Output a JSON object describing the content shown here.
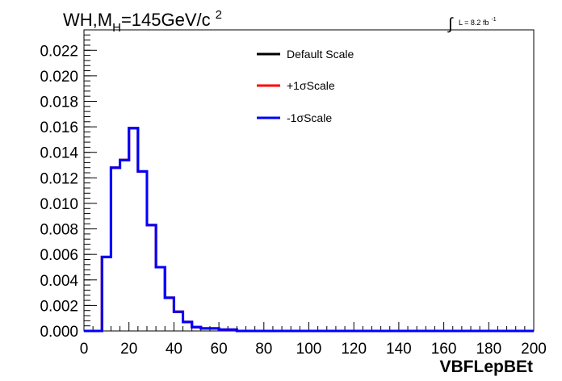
{
  "chart_data": {
    "type": "line",
    "title": {
      "main": "WH,M",
      "sub": "H",
      "value": "=145GeV/c",
      "sup": "2"
    },
    "lumi": {
      "integral": "∫",
      "text": "L = 8.2 fb",
      "sup": "-1"
    },
    "xlabel": "VBFLepBEt",
    "ylabel": "",
    "xlim": [
      0,
      200
    ],
    "ylim": [
      0,
      0.0236
    ],
    "x_ticks": [
      0,
      20,
      40,
      60,
      80,
      100,
      120,
      140,
      160,
      180,
      200
    ],
    "x_tick_labels": [
      "0",
      "20",
      "40",
      "60",
      "80",
      "100",
      "120",
      "140",
      "160",
      "180",
      "200"
    ],
    "y_ticks": [
      0,
      0.002,
      0.004,
      0.006,
      0.008,
      0.01,
      0.012,
      0.014,
      0.016,
      0.018,
      0.02,
      0.022
    ],
    "y_tick_labels": [
      "0.000",
      "0.002",
      "0.004",
      "0.006",
      "0.008",
      "0.010",
      "0.012",
      "0.014",
      "0.016",
      "0.018",
      "0.020",
      "0.022"
    ],
    "grid": false,
    "legend_position": "top-center",
    "bin_edges": [
      0,
      4,
      8,
      12,
      16,
      20,
      24,
      28,
      32,
      36,
      40,
      44,
      48,
      52,
      56,
      60,
      64,
      68,
      200
    ],
    "series": [
      {
        "name": "Default Scale",
        "color": "#000000",
        "values": [
          0,
          0,
          0.0058,
          0.0128,
          0.0134,
          0.0159,
          0.0125,
          0.0083,
          0.005,
          0.0026,
          0.0015,
          0.0007,
          0.0003,
          0.0002,
          0.0002,
          0.0001,
          0.0001,
          0
        ]
      },
      {
        "name": "+1σScale",
        "color": "#ff0000",
        "values": [
          0,
          0,
          0.0058,
          0.0128,
          0.0134,
          0.0159,
          0.0125,
          0.0083,
          0.005,
          0.0026,
          0.0015,
          0.0007,
          0.0003,
          0.0002,
          0.0002,
          0.0001,
          0.0001,
          0
        ]
      },
      {
        "name": "-1σScale",
        "color": "#0000ff",
        "values": [
          0,
          0,
          0.0058,
          0.0128,
          0.0134,
          0.0159,
          0.0125,
          0.0083,
          0.005,
          0.0026,
          0.0015,
          0.0007,
          0.0003,
          0.0002,
          0.0002,
          0.0001,
          0.0001,
          0
        ]
      }
    ]
  }
}
